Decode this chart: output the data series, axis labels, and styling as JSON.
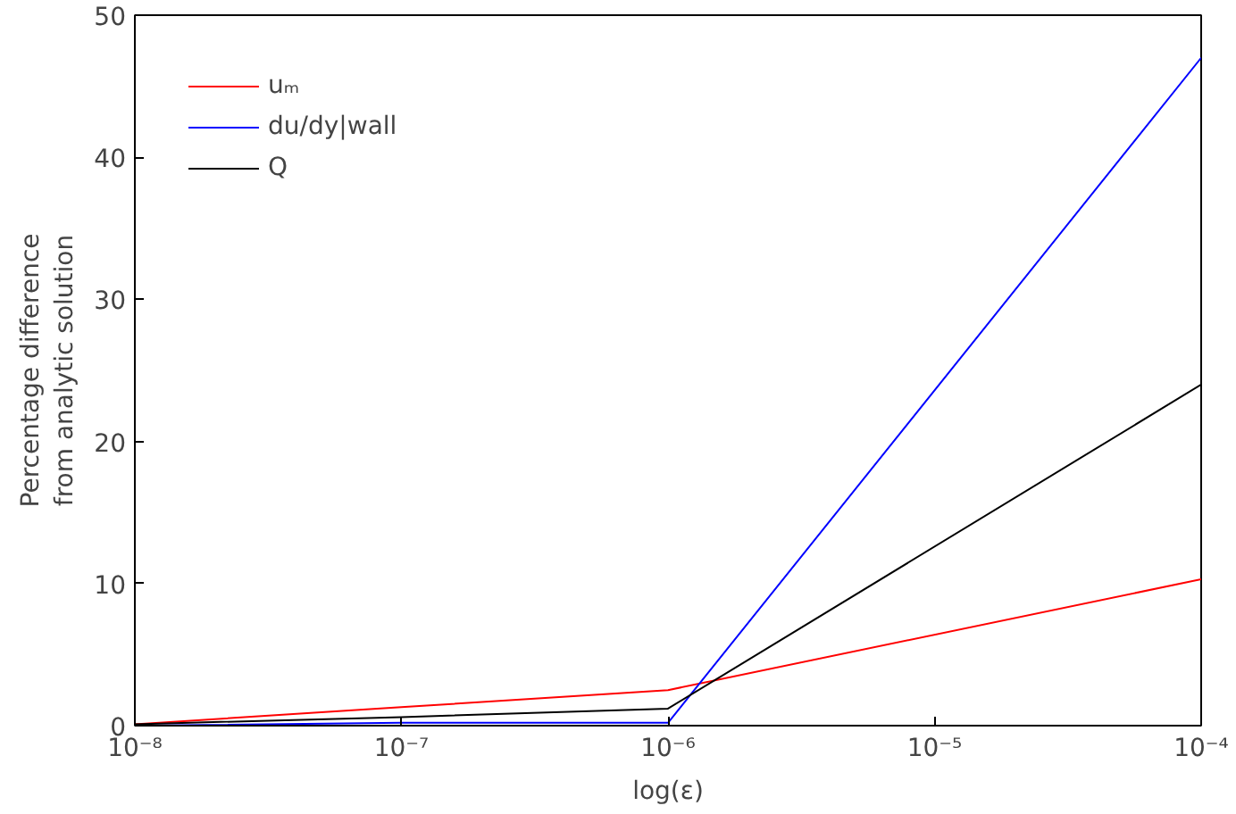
{
  "chart_data": {
    "type": "line",
    "xlabel": "log(ε)",
    "ylabel": "Percentage difference\nfrom analytic solution",
    "x": [
      1e-08,
      1e-07,
      1e-06,
      0.0001
    ],
    "series": [
      {
        "name": "uₘ",
        "color": "#ff0000",
        "values": [
          0.1,
          1.3,
          2.5,
          10.3
        ]
      },
      {
        "name": "du/dy|wall",
        "color": "#0000ff",
        "values": [
          0,
          0.2,
          0.2,
          47
        ]
      },
      {
        "name": "Q",
        "color": "#000000",
        "values": [
          0.1,
          0.6,
          1.2,
          24
        ]
      }
    ],
    "log": "x",
    "xlim": [
      1e-08,
      0.0001
    ],
    "ylim": [
      0,
      50
    ],
    "xticks": [
      {
        "value": 1e-08,
        "label": "10⁻⁸"
      },
      {
        "value": 1e-07,
        "label": "10⁻⁷"
      },
      {
        "value": 1e-06,
        "label": "10⁻⁶"
      },
      {
        "value": 1e-05,
        "label": "10⁻⁵"
      },
      {
        "value": 0.0001,
        "label": "10⁻⁴"
      }
    ],
    "yticks": [
      0,
      10,
      20,
      30,
      40,
      50
    ],
    "grid": false,
    "legend": "top left",
    "marker": "none",
    "line_style": "solid"
  }
}
